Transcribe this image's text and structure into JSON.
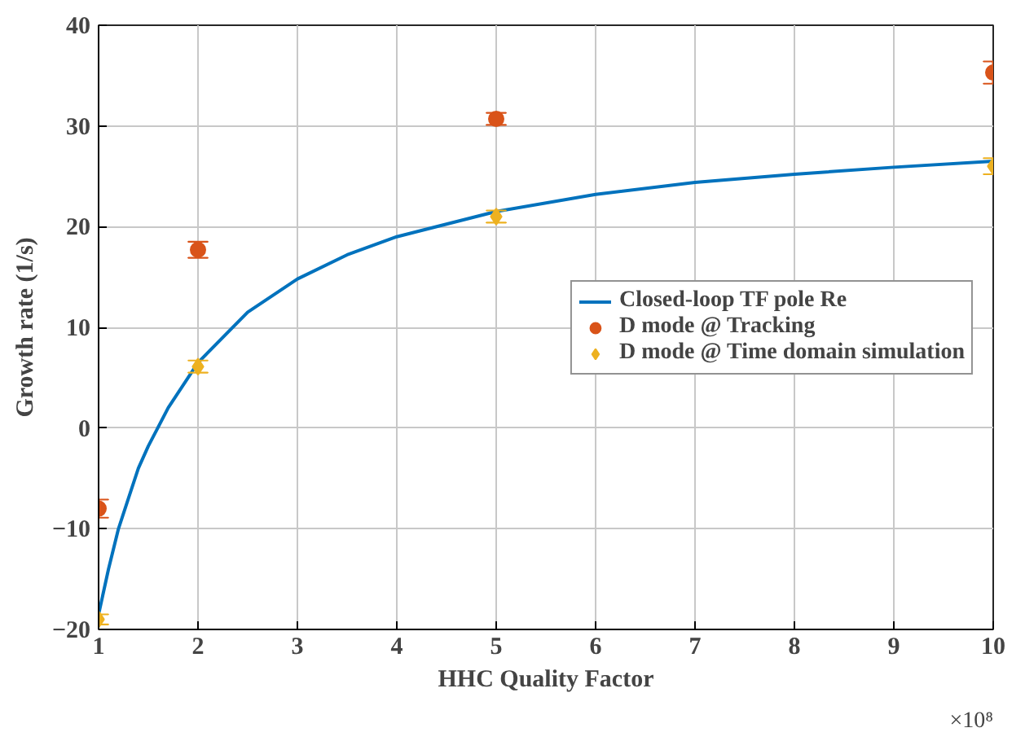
{
  "chart_data": {
    "type": "scatter",
    "xlabel": "HHC Quality Factor",
    "ylabel": "Growth rate (1/s)",
    "xlim": [
      1,
      10
    ],
    "ylim": [
      -20,
      40
    ],
    "xticks": [
      1,
      2,
      3,
      4,
      5,
      6,
      7,
      8,
      9,
      10
    ],
    "yticks": [
      -20,
      -10,
      0,
      10,
      20,
      30,
      40
    ],
    "grid": true,
    "legend": "right",
    "annotations": [
      "×10⁸"
    ],
    "series": [
      {
        "name": "Closed-loop TF pole Re",
        "type": "line",
        "color": "#0072bd",
        "marker": "none",
        "line_style": "solid",
        "x": [
          1,
          1.1,
          1.2,
          1.3,
          1.4,
          1.5,
          1.7,
          2,
          2.5,
          3,
          3.5,
          4,
          5,
          6,
          7,
          8,
          9,
          10
        ],
        "values": [
          -18.5,
          -14,
          -10,
          -7,
          -4,
          -1.8,
          2,
          6.5,
          11.5,
          14.8,
          17.2,
          19,
          21.5,
          23.2,
          24.4,
          25.2,
          25.9,
          26.5
        ]
      },
      {
        "name": "D mode @ Tracking",
        "color": "#d95319",
        "marker": "circle",
        "x": [
          1,
          2,
          5,
          10
        ],
        "values": [
          -8,
          17.7,
          30.7,
          35.3
        ],
        "errors": [
          0.9,
          0.8,
          0.6,
          1.1
        ]
      },
      {
        "name": "D mode @ Time domain simulation",
        "color": "#edb120",
        "marker": "diamond",
        "x": [
          1,
          2,
          5,
          10
        ],
        "values": [
          -19,
          6.1,
          21,
          26
        ],
        "errors": [
          0.5,
          0.6,
          0.6,
          0.8
        ]
      }
    ]
  }
}
